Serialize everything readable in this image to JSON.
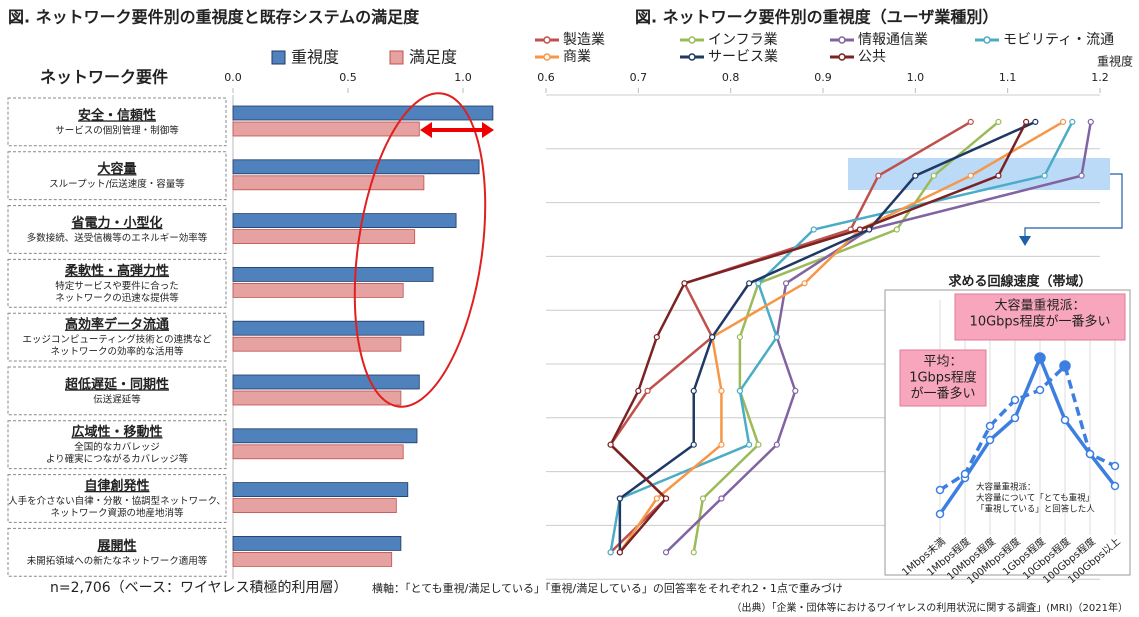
{
  "chart_data": [
    {
      "type": "bar",
      "orientation": "horizontal",
      "title": "図. ネットワーク要件別の重視度と既存システムの満足度",
      "axis_header": "ネットワーク要件",
      "categories": [
        "安全・信頼性",
        "大容量",
        "省電力・小型化",
        "柔軟性・高弾力性",
        "高効率データ流通",
        "超低遅延・同期性",
        "広域性・移動性",
        "自律創発性",
        "展開性"
      ],
      "category_descriptions": [
        [
          "サービスの個別管理・制御等"
        ],
        [
          "スループット/伝送速度・容量等"
        ],
        [
          "多数接続、送受信機等のエネルギー効率等"
        ],
        [
          "特定サービスや要件に合った",
          "ネットワークの迅速な提供等"
        ],
        [
          "エッジコンピューティング技術との連携など",
          "ネットワークの効率的な活用等"
        ],
        [
          "伝送遅延等"
        ],
        [
          "全国的なカバレッジ",
          "より確実につながるカバレッジ等"
        ],
        [
          "人手を介さない自律・分散・協調型ネットワーク、",
          "ネットワーク資源の地産地消等"
        ],
        [
          "未開拓領域への新たなネットワーク適用等"
        ]
      ],
      "series": [
        {
          "name": "重視度",
          "color": "#4f81bd",
          "values": [
            1.13,
            1.07,
            0.97,
            0.87,
            0.83,
            0.81,
            0.8,
            0.76,
            0.73
          ]
        },
        {
          "name": "満足度",
          "color": "#e6a1a1",
          "values": [
            0.81,
            0.83,
            0.79,
            0.74,
            0.73,
            0.73,
            0.74,
            0.71,
            0.69
          ]
        }
      ],
      "xlim": [
        0,
        1.2
      ],
      "xticks": [
        {
          "value": 0,
          "label": "0.0"
        },
        0.5,
        {
          "value": 1,
          "label": "1.0"
        }
      ]
    },
    {
      "type": "line",
      "orientation": "horizontal",
      "title": "図. ネットワーク要件別の重視度（ユーザ業種別）",
      "xlabel": "重視度",
      "xlim": [
        0.6,
        1.2
      ],
      "xticks": [
        0.6,
        0.7,
        0.8,
        0.9,
        {
          "value": 1,
          "label": "1.0"
        },
        1.1,
        1.2
      ],
      "series": [
        {
          "name": "製造業",
          "color": "#c0504d",
          "values": [
            1.06,
            0.96,
            0.93,
            0.75,
            0.78,
            0.71,
            0.67,
            0.73,
            0.67
          ]
        },
        {
          "name": "インフラ業",
          "color": "#9bbb59",
          "values": [
            1.09,
            1.02,
            0.98,
            0.83,
            0.81,
            0.81,
            0.83,
            0.77,
            0.76
          ]
        },
        {
          "name": "情報通信業",
          "color": "#8064a2",
          "values": [
            1.19,
            1.18,
            0.95,
            0.86,
            0.85,
            0.87,
            0.85,
            0.79,
            0.73
          ]
        },
        {
          "name": "モビリティ・流通",
          "color": "#4bacc6",
          "values": [
            1.17,
            1.14,
            0.89,
            0.83,
            0.85,
            0.81,
            0.82,
            0.68,
            0.67
          ]
        },
        {
          "name": "商業",
          "color": "#f79646",
          "values": [
            1.16,
            1.06,
            0.94,
            0.88,
            0.78,
            0.79,
            0.79,
            0.72,
            0.68
          ]
        },
        {
          "name": "サービス業",
          "color": "#1f3864",
          "values": [
            1.13,
            1.0,
            0.95,
            0.82,
            0.78,
            0.76,
            0.76,
            0.68,
            0.68
          ]
        },
        {
          "name": "公共",
          "color": "#7b2222",
          "values": [
            1.12,
            1.09,
            0.94,
            0.75,
            0.72,
            0.7,
            0.67,
            0.73,
            0.68
          ]
        }
      ]
    },
    {
      "type": "line",
      "orientation": "vertical",
      "title": "求める回線速度（帯域）",
      "categories": [
        "1Mbps未満",
        "1Mbps程度",
        "10Mbps程度",
        "100Mbps程度",
        "1Gbps程度",
        "10Gbps程度",
        "100Gbps程度",
        "100Gbps以上"
      ],
      "ylim": [
        0,
        90
      ],
      "series": [
        {
          "color": "#3d7fe0",
          "dashed": false,
          "values": [
            8,
            26,
            45,
            56,
            86,
            55,
            38,
            22
          ]
        },
        {
          "color": "#3d7fe0",
          "dashed": true,
          "values": [
            20,
            28,
            52,
            65,
            70,
            82,
            38,
            32
          ]
        }
      ],
      "annotations": [
        [
          "大容量重視派：",
          "10Gbps程度が一番多い"
        ],
        [
          "平均：",
          "1Gbps程度",
          "が一番多い"
        ],
        [
          "大容量重視派：",
          "大容量について「とても重視」",
          "「重視している」と回答した人"
        ]
      ]
    }
  ],
  "notes": [
    "n=2,706（ベース：ワイヤレス積極的利用層）",
    "横軸：「とても重視/満足している」「重視/満足している」の回答率をそれぞれ2・1点で重みづけ",
    "（出典）「企業・団体等におけるワイヤレスの利用状況に関する調査」(MRI)（2021年）"
  ]
}
